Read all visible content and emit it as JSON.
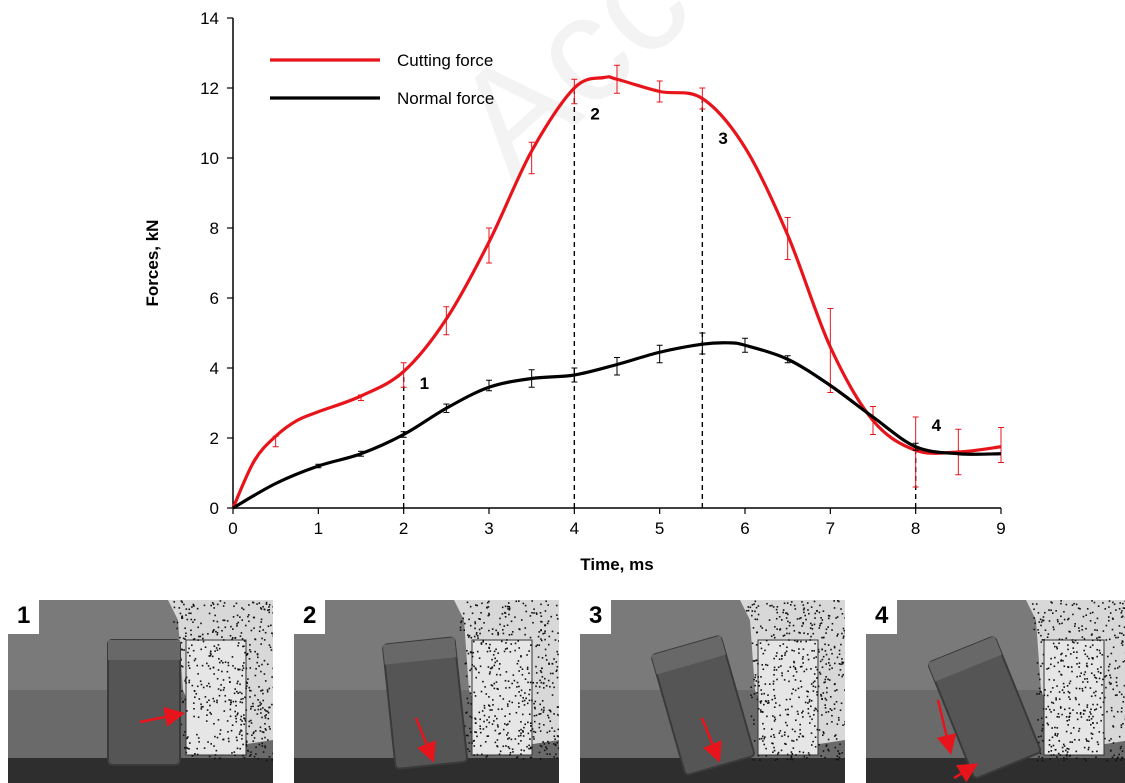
{
  "chart_data": {
    "type": "line",
    "xlabel": "Time, ms",
    "ylabel": "Forces,  kN",
    "xlim": [
      0,
      9
    ],
    "ylim": [
      0,
      14
    ],
    "xticks": [
      0,
      1,
      2,
      3,
      4,
      5,
      6,
      7,
      8,
      9
    ],
    "yticks": [
      0,
      2,
      4,
      6,
      8,
      10,
      12,
      14
    ],
    "legend_position": "top-left",
    "grid": false,
    "series": [
      {
        "name": "Cutting force",
        "color": "#e8141b",
        "x": [
          0,
          0.25,
          0.5,
          0.75,
          1,
          1.5,
          2,
          2.5,
          3,
          3.5,
          4,
          4.35,
          4.5,
          5,
          5.5,
          6,
          6.5,
          7,
          7.5,
          8,
          8.5,
          9
        ],
        "y": [
          0,
          1.35,
          2.05,
          2.5,
          2.75,
          3.2,
          3.9,
          5.4,
          7.6,
          10.2,
          12.0,
          12.3,
          12.25,
          11.9,
          11.7,
          10.3,
          7.8,
          4.6,
          2.5,
          1.65,
          1.6,
          1.75
        ],
        "error_points": [
          {
            "x": 0.5,
            "y": 1.9,
            "err": 0.15
          },
          {
            "x": 1.5,
            "y": 3.15,
            "err": 0.08
          },
          {
            "x": 2,
            "y": 3.8,
            "err": 0.35
          },
          {
            "x": 2.5,
            "y": 5.35,
            "err": 0.4
          },
          {
            "x": 3,
            "y": 7.5,
            "err": 0.5
          },
          {
            "x": 3.5,
            "y": 10.0,
            "err": 0.45
          },
          {
            "x": 4,
            "y": 11.9,
            "err": 0.35
          },
          {
            "x": 4.5,
            "y": 12.25,
            "err": 0.4
          },
          {
            "x": 5,
            "y": 11.9,
            "err": 0.3
          },
          {
            "x": 5.5,
            "y": 11.7,
            "err": 0.3
          },
          {
            "x": 6.5,
            "y": 7.7,
            "err": 0.6
          },
          {
            "x": 7,
            "y": 4.5,
            "err": 1.2
          },
          {
            "x": 7.5,
            "y": 2.5,
            "err": 0.4
          },
          {
            "x": 8,
            "y": 1.6,
            "err": 1.0
          },
          {
            "x": 8.5,
            "y": 1.6,
            "err": 0.65
          },
          {
            "x": 9,
            "y": 1.8,
            "err": 0.5
          }
        ]
      },
      {
        "name": "Normal force",
        "color": "#000000",
        "x": [
          0,
          0.5,
          1,
          1.5,
          2,
          2.5,
          3,
          3.5,
          4,
          4.5,
          5,
          5.5,
          5.8,
          6,
          6.5,
          7,
          7.5,
          8,
          8.5,
          9
        ],
        "y": [
          0,
          0.7,
          1.2,
          1.55,
          2.1,
          2.85,
          3.45,
          3.7,
          3.8,
          4.1,
          4.45,
          4.68,
          4.72,
          4.65,
          4.25,
          3.5,
          2.6,
          1.75,
          1.55,
          1.55
        ],
        "error_points": [
          {
            "x": 1,
            "y": 1.2,
            "err": 0.05
          },
          {
            "x": 1.5,
            "y": 1.55,
            "err": 0.07
          },
          {
            "x": 2,
            "y": 2.1,
            "err": 0.08
          },
          {
            "x": 2.5,
            "y": 2.85,
            "err": 0.12
          },
          {
            "x": 3,
            "y": 3.5,
            "err": 0.15
          },
          {
            "x": 3.5,
            "y": 3.7,
            "err": 0.25
          },
          {
            "x": 4,
            "y": 3.8,
            "err": 0.2
          },
          {
            "x": 4.5,
            "y": 4.05,
            "err": 0.25
          },
          {
            "x": 5,
            "y": 4.4,
            "err": 0.25
          },
          {
            "x": 5.5,
            "y": 4.7,
            "err": 0.3
          },
          {
            "x": 6,
            "y": 4.65,
            "err": 0.2
          },
          {
            "x": 6.5,
            "y": 4.25,
            "err": 0.1
          },
          {
            "x": 8,
            "y": 1.75,
            "err": 0.1
          }
        ]
      }
    ],
    "markers": [
      {
        "label": "1",
        "x": 2,
        "y_top": 3.8,
        "label_y": 3.4
      },
      {
        "label": "2",
        "x": 4,
        "y_top": 11.9,
        "label_y": 11.1
      },
      {
        "label": "3",
        "x": 5.5,
        "y_top": 11.7,
        "label_y": 10.4
      },
      {
        "label": "4",
        "x": 8,
        "y_top": 1.6,
        "label_y": 2.2
      }
    ]
  },
  "watermark": "Accepted Manuscript",
  "frames": [
    {
      "label": "1",
      "arrow": "horizontal"
    },
    {
      "label": "2",
      "arrow": "down"
    },
    {
      "label": "3",
      "arrow": "down"
    },
    {
      "label": "4",
      "arrow": "down-double"
    }
  ]
}
